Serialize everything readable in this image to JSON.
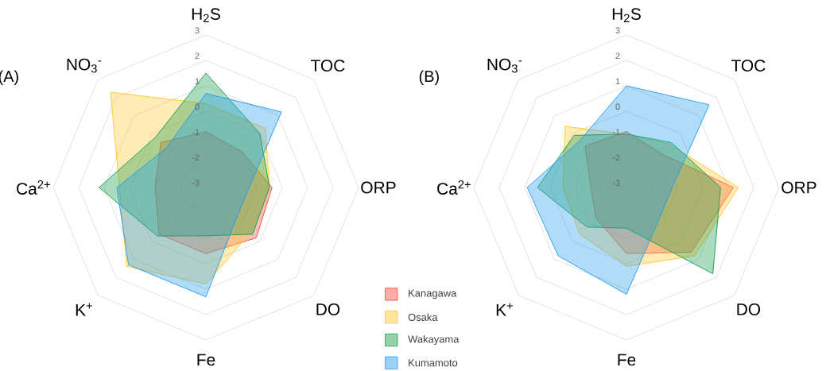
{
  "chart_data": [
    {
      "type": "radar",
      "title": "(A)",
      "categories": [
        "H$_{2}$S",
        "TOC",
        "ORP",
        "DO",
        "Fe",
        "K$^{+}$",
        "Ca$^{2+}$",
        "NO$_{3}$$^{-}$"
      ],
      "ylim": [
        -3,
        3
      ],
      "yticks": [
        -3,
        -2,
        -1,
        0,
        1,
        2,
        3
      ],
      "grid": true,
      "series": [
        {
          "color": "#f0493a",
          "values": [
            -0.8,
            -1.0,
            -0.4,
            -0.2,
            -0.4,
            -0.4,
            -1.0,
            -0.5
          ]
        },
        {
          "color": "#ffc72c",
          "values": [
            0.3,
            0.3,
            -0.5,
            -0.5,
            0.8,
            1.4,
            0.4,
            2.3
          ]
        },
        {
          "color": "#129a48",
          "values": [
            1.5,
            0.0,
            -0.5,
            -0.4,
            -1.1,
            -0.3,
            1.2,
            -0.2
          ]
        },
        {
          "color": "#1e9bf0",
          "values": [
            0.7,
            1.2,
            -1.3,
            -1.3,
            1.3,
            1.3,
            0.5,
            -0.8
          ]
        }
      ]
    },
    {
      "type": "radar",
      "title": "(B)",
      "categories": [
        "H$_{2}$S",
        "TOC",
        "ORP",
        "DO",
        "Fe",
        "K$^{+}$",
        "Ca$^{2+}$",
        "NO$_{3}$$^{-}$"
      ],
      "ylim": [
        -3,
        3
      ],
      "yticks": [
        -3,
        -2,
        -1,
        0,
        1,
        2,
        3
      ],
      "grid": true,
      "legend": "bottom left",
      "series": [
        {
          "name": "Kanagawa",
          "color": "#f0493a",
          "values": [
            -0.8,
            -1.1,
            1.2,
            0.6,
            -0.4,
            -1.3,
            -1.6,
            -0.7
          ]
        },
        {
          "name": "Osaka",
          "color": "#ffc72c",
          "values": [
            -0.9,
            -0.6,
            1.4,
            0.8,
            0.1,
            -0.4,
            -0.5,
            0.4
          ]
        },
        {
          "name": "Wakayama",
          "color": "#129a48",
          "values": [
            -0.9,
            -0.5,
            0.7,
            1.8,
            -1.4,
            -0.8,
            0.5,
            -0.1
          ]
        },
        {
          "name": "Kumamoto",
          "color": "#1e9bf0",
          "values": [
            1.0,
            1.6,
            -1.2,
            -1.2,
            1.2,
            0.8,
            0.9,
            -0.4
          ]
        }
      ]
    }
  ]
}
